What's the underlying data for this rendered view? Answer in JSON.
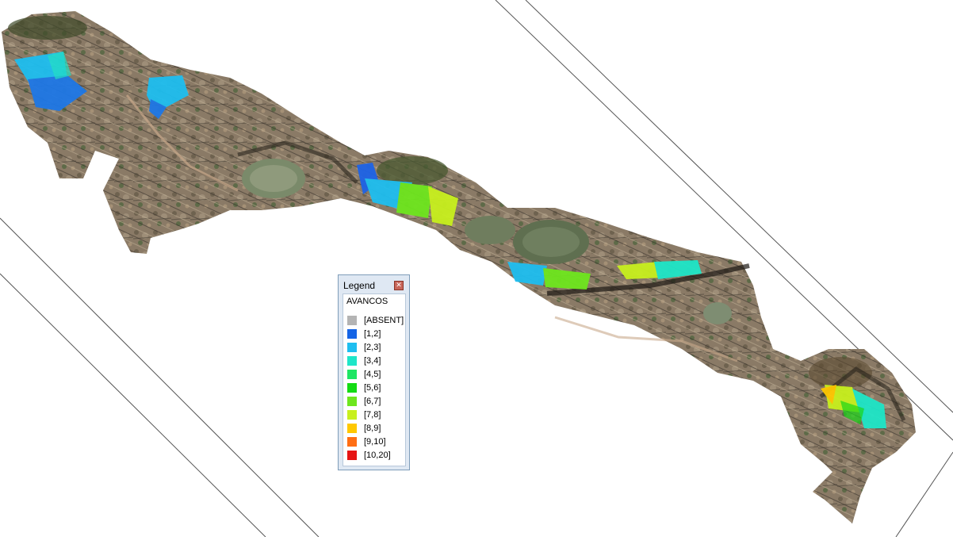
{
  "legend": {
    "title": "Legend",
    "close_icon": "close-icon",
    "layer_name": "AVANCOS",
    "items": [
      {
        "label": "[ABSENT]",
        "color": "#b4b4b4"
      },
      {
        "label": "[1,2]",
        "color": "#1464e6"
      },
      {
        "label": "[2,3]",
        "color": "#1ebef0"
      },
      {
        "label": "[3,4]",
        "color": "#1ee6c8"
      },
      {
        "label": "[4,5]",
        "color": "#1ee664"
      },
      {
        "label": "[5,6]",
        "color": "#14dc14"
      },
      {
        "label": "[6,7]",
        "color": "#6ee61e"
      },
      {
        "label": "[7,8]",
        "color": "#c8f01e"
      },
      {
        "label": "[8,9]",
        "color": "#ffc800"
      },
      {
        "label": "[9,10]",
        "color": "#ff6e14"
      },
      {
        "label": "[10,20]",
        "color": "#e61414"
      }
    ]
  }
}
